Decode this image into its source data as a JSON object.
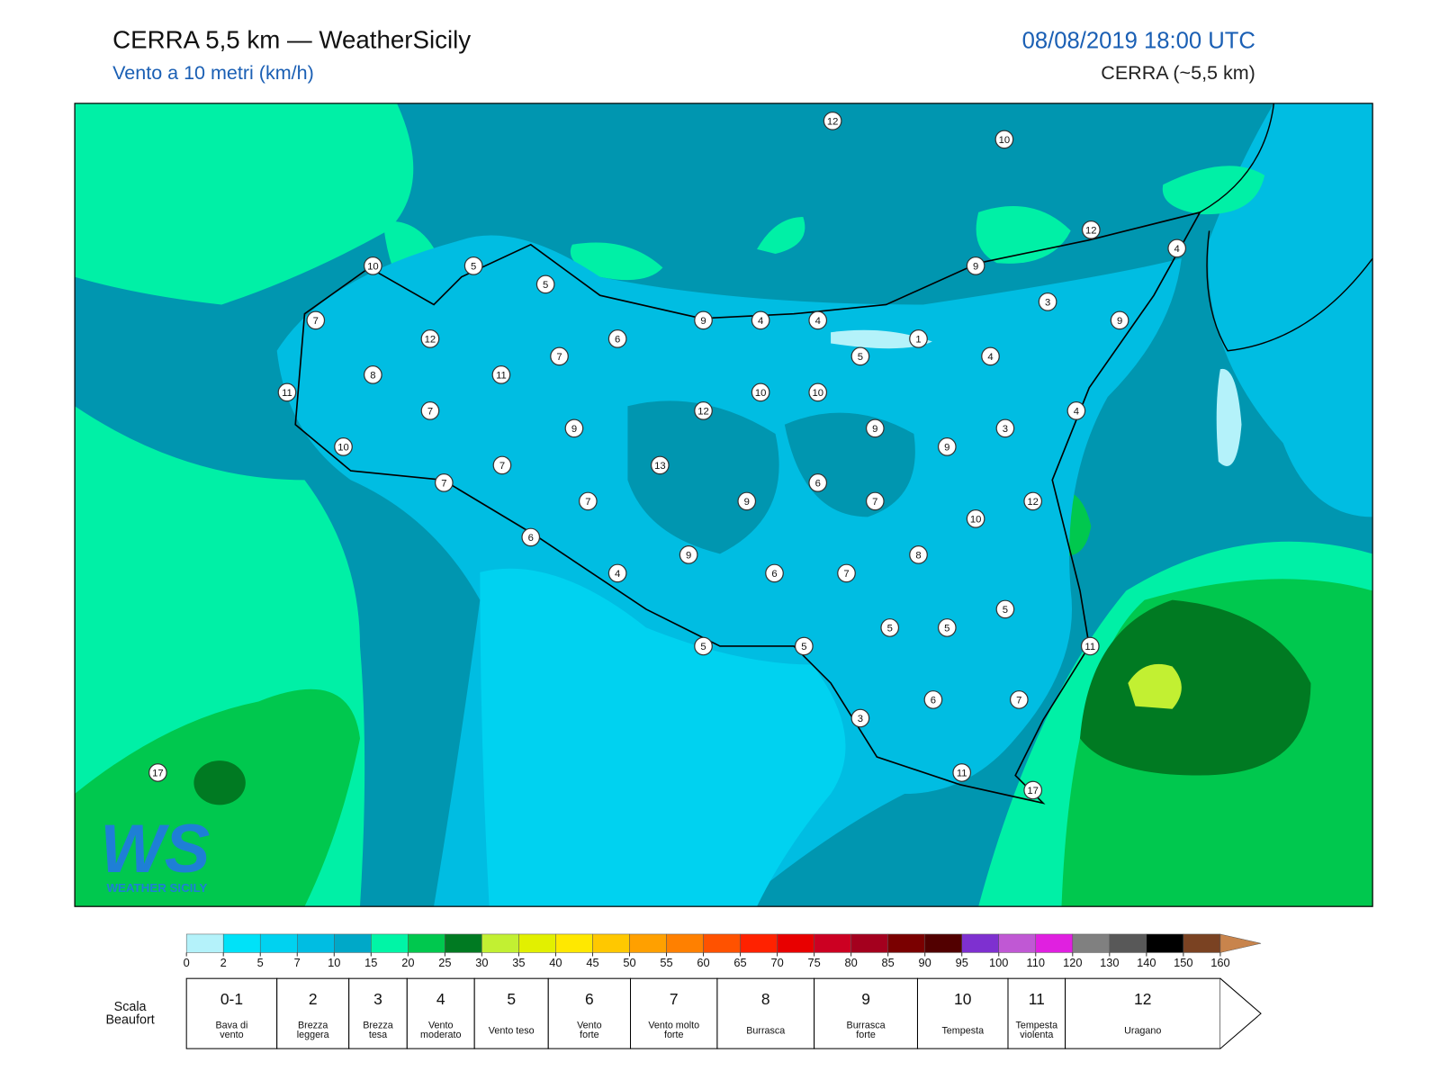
{
  "header": {
    "title": "CERRA 5,5 km — WeatherSicily",
    "subtitle": "Vento a 10 metri (km/h)",
    "date": "08/08/2019 18:00 UTC",
    "model": "CERRA (~5,5 km)"
  },
  "stations": [
    12,
    10,
    12,
    4,
    10,
    5,
    5,
    9,
    3,
    9,
    7,
    9,
    4,
    4,
    12,
    6,
    1,
    7,
    5,
    4,
    8,
    11,
    11,
    10,
    10,
    12,
    7,
    4,
    9,
    9,
    3,
    10,
    9,
    7,
    13,
    7,
    6,
    12,
    7,
    9,
    7,
    10,
    6,
    8,
    9,
    4,
    6,
    7,
    5,
    5,
    5,
    5,
    5,
    11,
    6,
    7,
    3,
    17,
    11,
    17
  ],
  "logo": {
    "mark": "WS",
    "text": "WEATHER SICILY"
  },
  "colorbar": {
    "ticks": [
      0,
      2,
      5,
      7,
      10,
      15,
      20,
      25,
      30,
      35,
      40,
      45,
      50,
      55,
      60,
      65,
      70,
      75,
      80,
      85,
      90,
      95,
      100,
      110,
      120,
      130,
      140,
      150,
      160
    ],
    "colors": [
      "#b4f2fa",
      "#00e2f8",
      "#00d2f0",
      "#00bde2",
      "#00a8c8",
      "#00f5a6",
      "#00c84e",
      "#007a22",
      "#c2f032",
      "#e2f000",
      "#ffe800",
      "#ffc800",
      "#ffa000",
      "#ff8000",
      "#ff5200",
      "#ff2200",
      "#e80000",
      "#cc0022",
      "#a4001e",
      "#7a0000",
      "#520000",
      "#7e30d0",
      "#c058d4",
      "#e020e0",
      "#808080",
      "#585858",
      "#000000",
      "#7a4222",
      "#c8844c"
    ],
    "extend_color": "#c8844c"
  },
  "beaufort": {
    "title": [
      "Scala",
      "Beaufort"
    ],
    "levels": [
      {
        "force": "0-1",
        "label": [
          "Bava di",
          "vento"
        ]
      },
      {
        "force": "2",
        "label": [
          "Brezza",
          "leggera"
        ]
      },
      {
        "force": "3",
        "label": [
          "Brezza",
          "tesa"
        ]
      },
      {
        "force": "4",
        "label": [
          "Vento",
          "moderato"
        ]
      },
      {
        "force": "5",
        "label": [
          "Vento teso"
        ]
      },
      {
        "force": "6",
        "label": [
          "Vento",
          "forte"
        ]
      },
      {
        "force": "7",
        "label": [
          "Vento molto",
          "forte"
        ]
      },
      {
        "force": "8",
        "label": [
          "Burrasca"
        ]
      },
      {
        "force": "9",
        "label": [
          "Burrasca",
          "forte"
        ]
      },
      {
        "force": "10",
        "label": [
          "Tempesta"
        ]
      },
      {
        "force": "11",
        "label": [
          "Tempesta",
          "violenta"
        ]
      },
      {
        "force": "12",
        "label": [
          "Uragano"
        ]
      }
    ]
  }
}
